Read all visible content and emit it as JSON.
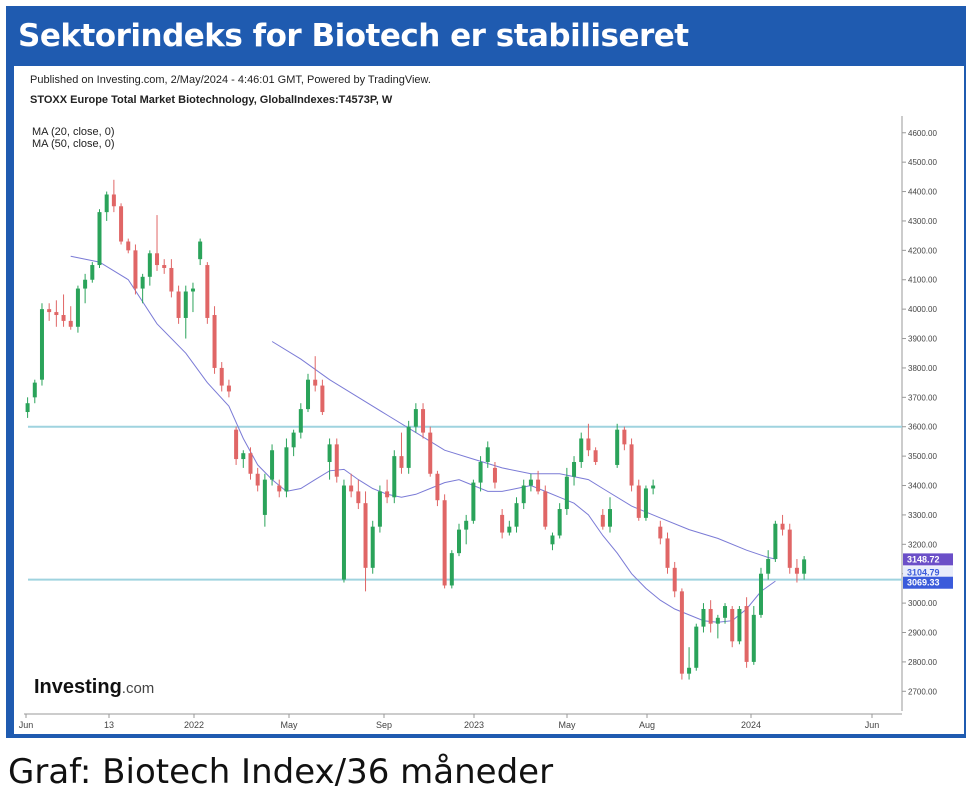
{
  "headline": "Sektorindeks for Biotech er stabiliseret",
  "caption": "Graf: Biotech Index/36 måneder",
  "chart_header": {
    "published": "Published on Investing.com, 2/May/2024 - 4:46:01 GMT, Powered by TradingView.",
    "symbol": "STOXX Europe Total Market Biotechnology, GlobalIndexes:T4573P, W",
    "ma20": "MA (20, close, 0)",
    "ma50": "MA (50, close, 0)"
  },
  "watermark": {
    "brand": "Investing",
    "suffix": ".com"
  },
  "colors": {
    "frame": "#1f5bb0",
    "up": "#2aa35a",
    "down": "#e06666",
    "ma": "#7b7bd6",
    "support": "#9fd3df",
    "label_purple": "#6b4fc8",
    "label_blue": "#3b5bdb"
  },
  "chart_data": {
    "type": "candlestick",
    "x_tick_labels": [
      "Jun",
      "13",
      "2022",
      "May",
      "Sep",
      "2023",
      "May",
      "Aug",
      "2024",
      "Jun"
    ],
    "y_ticks": [
      "2700.00",
      "2800.00",
      "2900.00",
      "3000.00",
      "3100.00",
      "3200.00",
      "3300.00",
      "3400.00",
      "3500.00",
      "3600.00",
      "3700.00",
      "3800.00",
      "3900.00",
      "4000.00",
      "4100.00",
      "4200.00",
      "4300.00",
      "4400.00",
      "4500.00",
      "4600.00"
    ],
    "ylim": [
      2650,
      4640
    ],
    "horizontal_levels": [
      3600,
      3080
    ],
    "price_labels": [
      {
        "text": "3148.72",
        "value": 3148.72,
        "color": "#6b4fc8"
      },
      {
        "text": "3104.79",
        "value": 3104.79,
        "color": "#e8ecfb"
      },
      {
        "text": "3069.33",
        "value": 3069.33,
        "color": "#3b5bdb"
      }
    ],
    "ma_series": [
      {
        "name": "MA (20, close, 0)",
        "values": [
          [
            6,
            4180
          ],
          [
            10,
            4160
          ],
          [
            14,
            4100
          ],
          [
            18,
            3950
          ],
          [
            22,
            3850
          ],
          [
            25,
            3750
          ],
          [
            28,
            3670
          ],
          [
            30,
            3560
          ],
          [
            32,
            3470
          ],
          [
            34,
            3420
          ],
          [
            36,
            3380
          ],
          [
            38,
            3390
          ],
          [
            40,
            3420
          ],
          [
            42,
            3450
          ],
          [
            44,
            3455
          ],
          [
            46,
            3420
          ],
          [
            48,
            3390
          ],
          [
            50,
            3370
          ],
          [
            52,
            3360
          ],
          [
            54,
            3370
          ],
          [
            56,
            3390
          ],
          [
            58,
            3410
          ],
          [
            60,
            3420
          ],
          [
            62,
            3400
          ],
          [
            64,
            3380
          ],
          [
            66,
            3380
          ],
          [
            68,
            3390
          ],
          [
            70,
            3400
          ],
          [
            72,
            3380
          ],
          [
            74,
            3360
          ],
          [
            76,
            3340
          ],
          [
            78,
            3300
          ],
          [
            80,
            3230
          ],
          [
            82,
            3170
          ],
          [
            84,
            3100
          ],
          [
            86,
            3050
          ],
          [
            88,
            3010
          ],
          [
            90,
            2980
          ],
          [
            92,
            2960
          ],
          [
            94,
            2940
          ],
          [
            96,
            2935
          ],
          [
            98,
            2940
          ],
          [
            100,
            2980
          ],
          [
            102,
            3040
          ],
          [
            104,
            3075
          ]
        ]
      },
      {
        "name": "MA (50, close, 0)",
        "values": [
          [
            34,
            3890
          ],
          [
            38,
            3830
          ],
          [
            42,
            3760
          ],
          [
            46,
            3700
          ],
          [
            50,
            3640
          ],
          [
            54,
            3580
          ],
          [
            58,
            3520
          ],
          [
            62,
            3490
          ],
          [
            66,
            3460
          ],
          [
            70,
            3440
          ],
          [
            74,
            3440
          ],
          [
            78,
            3420
          ],
          [
            80,
            3390
          ],
          [
            84,
            3330
          ],
          [
            88,
            3290
          ],
          [
            92,
            3250
          ],
          [
            96,
            3220
          ],
          [
            100,
            3180
          ],
          [
            103,
            3155
          ],
          [
            104,
            3150
          ]
        ]
      }
    ],
    "candles": [
      [
        0,
        3650,
        3700,
        3630,
        3680
      ],
      [
        1,
        3700,
        3760,
        3680,
        3750
      ],
      [
        2,
        3760,
        4020,
        3740,
        4000
      ],
      [
        3,
        4000,
        4020,
        3960,
        3990
      ],
      [
        4,
        3990,
        4030,
        3940,
        3980
      ],
      [
        5,
        3980,
        4050,
        3940,
        3960
      ],
      [
        6,
        3960,
        4010,
        3930,
        3940
      ],
      [
        7,
        3940,
        4080,
        3920,
        4070
      ],
      [
        8,
        4070,
        4120,
        4020,
        4100
      ],
      [
        9,
        4100,
        4160,
        4090,
        4150
      ],
      [
        10,
        4150,
        4340,
        4140,
        4330
      ],
      [
        11,
        4330,
        4400,
        4300,
        4390
      ],
      [
        12,
        4390,
        4440,
        4330,
        4350
      ],
      [
        13,
        4350,
        4360,
        4220,
        4230
      ],
      [
        14,
        4230,
        4240,
        4190,
        4200
      ],
      [
        15,
        4200,
        4220,
        4050,
        4070
      ],
      [
        16,
        4070,
        4120,
        4020,
        4110
      ],
      [
        17,
        4110,
        4200,
        4080,
        4190
      ],
      [
        18,
        4190,
        4320,
        4130,
        4150
      ],
      [
        19,
        4150,
        4170,
        4120,
        4140
      ],
      [
        20,
        4140,
        4170,
        4040,
        4060
      ],
      [
        21,
        4060,
        4080,
        3950,
        3970
      ],
      [
        22,
        3970,
        4080,
        3900,
        4060
      ],
      [
        23,
        4060,
        4090,
        3990,
        4070
      ],
      [
        24,
        4170,
        4240,
        4150,
        4230
      ],
      [
        25,
        4150,
        4160,
        3950,
        3970
      ],
      [
        26,
        3980,
        4010,
        3780,
        3800
      ],
      [
        27,
        3800,
        3820,
        3720,
        3740
      ],
      [
        28,
        3740,
        3760,
        3700,
        3720
      ],
      [
        29,
        3590,
        3600,
        3470,
        3490
      ],
      [
        30,
        3490,
        3520,
        3460,
        3510
      ],
      [
        31,
        3510,
        3530,
        3420,
        3440
      ],
      [
        32,
        3440,
        3460,
        3380,
        3400
      ],
      [
        33,
        3300,
        3440,
        3260,
        3420
      ],
      [
        34,
        3420,
        3540,
        3400,
        3520
      ],
      [
        35,
        3400,
        3420,
        3360,
        3380
      ],
      [
        36,
        3380,
        3560,
        3360,
        3530
      ],
      [
        37,
        3530,
        3590,
        3500,
        3580
      ],
      [
        38,
        3580,
        3680,
        3560,
        3660
      ],
      [
        39,
        3660,
        3780,
        3650,
        3760
      ],
      [
        40,
        3760,
        3840,
        3720,
        3740
      ],
      [
        41,
        3740,
        3760,
        3640,
        3650
      ],
      [
        42,
        3480,
        3560,
        3420,
        3540
      ],
      [
        43,
        3540,
        3560,
        3410,
        3430
      ],
      [
        44,
        3080,
        3420,
        3070,
        3400
      ],
      [
        45,
        3400,
        3440,
        3360,
        3380
      ],
      [
        46,
        3380,
        3420,
        3320,
        3340
      ],
      [
        47,
        3340,
        3380,
        3040,
        3120
      ],
      [
        48,
        3120,
        3280,
        3100,
        3260
      ],
      [
        49,
        3260,
        3400,
        3240,
        3380
      ],
      [
        50,
        3380,
        3420,
        3340,
        3360
      ],
      [
        51,
        3360,
        3520,
        3340,
        3500
      ],
      [
        52,
        3500,
        3580,
        3440,
        3460
      ],
      [
        53,
        3460,
        3620,
        3440,
        3600
      ],
      [
        54,
        3600,
        3680,
        3580,
        3660
      ],
      [
        55,
        3660,
        3680,
        3560,
        3580
      ],
      [
        56,
        3580,
        3600,
        3430,
        3440
      ],
      [
        57,
        3440,
        3450,
        3330,
        3350
      ],
      [
        58,
        3350,
        3370,
        3050,
        3060
      ],
      [
        59,
        3060,
        3180,
        3050,
        3170
      ],
      [
        60,
        3170,
        3270,
        3160,
        3250
      ],
      [
        61,
        3250,
        3300,
        3200,
        3280
      ],
      [
        62,
        3280,
        3420,
        3270,
        3410
      ],
      [
        63,
        3410,
        3500,
        3380,
        3480
      ],
      [
        64,
        3480,
        3550,
        3460,
        3530
      ],
      [
        65,
        3460,
        3480,
        3390,
        3410
      ],
      [
        66,
        3300,
        3320,
        3220,
        3240
      ],
      [
        67,
        3240,
        3280,
        3230,
        3260
      ],
      [
        68,
        3260,
        3360,
        3240,
        3340
      ],
      [
        69,
        3340,
        3420,
        3320,
        3400
      ],
      [
        70,
        3400,
        3440,
        3380,
        3420
      ],
      [
        71,
        3420,
        3450,
        3370,
        3380
      ],
      [
        72,
        3380,
        3400,
        3250,
        3260
      ],
      [
        73,
        3200,
        3240,
        3180,
        3230
      ],
      [
        74,
        3230,
        3340,
        3220,
        3320
      ],
      [
        75,
        3320,
        3460,
        3300,
        3430
      ],
      [
        76,
        3430,
        3500,
        3400,
        3480
      ],
      [
        77,
        3480,
        3580,
        3460,
        3560
      ],
      [
        78,
        3560,
        3610,
        3500,
        3520
      ],
      [
        79,
        3520,
        3530,
        3470,
        3480
      ],
      [
        80,
        3300,
        3320,
        3250,
        3260
      ],
      [
        81,
        3260,
        3360,
        3240,
        3320
      ],
      [
        82,
        3470,
        3610,
        3460,
        3590
      ],
      [
        83,
        3590,
        3600,
        3520,
        3540
      ],
      [
        84,
        3540,
        3560,
        3380,
        3400
      ],
      [
        85,
        3400,
        3420,
        3280,
        3290
      ],
      [
        86,
        3290,
        3400,
        3280,
        3390
      ],
      [
        87,
        3390,
        3420,
        3370,
        3400
      ],
      [
        88,
        3260,
        3280,
        3200,
        3220
      ],
      [
        89,
        3220,
        3240,
        3100,
        3120
      ],
      [
        90,
        3120,
        3140,
        3020,
        3040
      ],
      [
        91,
        3040,
        3050,
        2740,
        2760
      ],
      [
        92,
        2760,
        2850,
        2740,
        2780
      ],
      [
        93,
        2780,
        2930,
        2770,
        2920
      ],
      [
        94,
        2920,
        3000,
        2900,
        2980
      ],
      [
        95,
        2980,
        3010,
        2900,
        2930
      ],
      [
        96,
        2930,
        2960,
        2880,
        2950
      ],
      [
        97,
        2950,
        3000,
        2930,
        2990
      ],
      [
        98,
        2980,
        2990,
        2850,
        2870
      ],
      [
        99,
        2870,
        2990,
        2860,
        2980
      ],
      [
        100,
        2990,
        3020,
        2780,
        2800
      ],
      [
        101,
        2800,
        2990,
        2790,
        2960
      ],
      [
        102,
        2960,
        3120,
        2950,
        3100
      ],
      [
        103,
        3100,
        3180,
        3080,
        3150
      ],
      [
        104,
        3150,
        3280,
        3140,
        3270
      ],
      [
        105,
        3270,
        3300,
        3230,
        3250
      ],
      [
        106,
        3250,
        3270,
        3100,
        3120
      ],
      [
        107,
        3120,
        3150,
        3070,
        3100
      ],
      [
        108,
        3100,
        3160,
        3080,
        3148.72
      ]
    ]
  }
}
